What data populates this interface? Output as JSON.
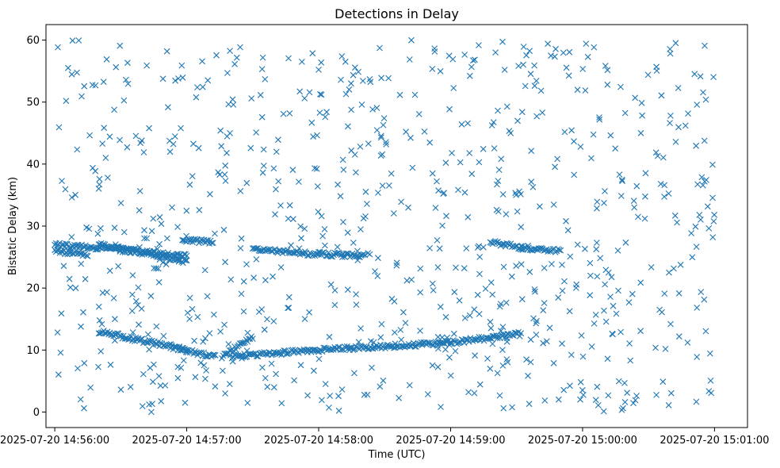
{
  "chart_data": {
    "type": "scatter",
    "title": "Detections in Delay",
    "xlabel": "Time (UTC)",
    "ylabel": "Bistatic Delay (km)",
    "marker": "x",
    "color": "#1f77b4",
    "grid": false,
    "legend": "none",
    "xlim": [
      "2025-07-20 14:55:56",
      "2025-07-20 15:01:15"
    ],
    "ylim": [
      -2.5,
      62.5
    ],
    "xticks": [
      "2025-07-20 14:56:00",
      "2025-07-20 14:57:00",
      "2025-07-20 14:58:00",
      "2025-07-20 14:59:00",
      "2025-07-20 15:00:00",
      "2025-07-20 15:01:00"
    ],
    "yticks": [
      0,
      10,
      20,
      30,
      40,
      50,
      60
    ],
    "tracks": [
      {
        "x_start": "2025-07-20 14:56:00",
        "x_end": "2025-07-20 14:57:00",
        "y_start": 27.0,
        "y_end": 25.3
      },
      {
        "x_start": "2025-07-20 14:56:00",
        "x_end": "2025-07-20 14:56:15",
        "y_start": 26.0,
        "y_end": 25.4
      },
      {
        "x_start": "2025-07-20 14:56:20",
        "x_end": "2025-07-20 14:57:00",
        "y_start": 27.0,
        "y_end": 24.3
      },
      {
        "x_start": "2025-07-20 14:56:20",
        "x_end": "2025-07-20 14:57:00",
        "y_start": 13.0,
        "y_end": 10.0
      },
      {
        "x_start": "2025-07-20 14:56:58",
        "x_end": "2025-07-20 14:57:12",
        "y_start": 27.8,
        "y_end": 27.4
      },
      {
        "x_start": "2025-07-20 14:56:58",
        "x_end": "2025-07-20 14:57:13",
        "y_start": 10.0,
        "y_end": 8.9
      },
      {
        "x_start": "2025-07-20 14:57:16",
        "x_end": "2025-07-20 14:57:30",
        "y_start": 9.0,
        "y_end": 12.0
      },
      {
        "x_start": "2025-07-20 14:57:30",
        "x_end": "2025-07-20 14:58:00",
        "y_start": 26.4,
        "y_end": 25.4
      },
      {
        "x_start": "2025-07-20 14:57:20",
        "x_end": "2025-07-20 14:58:00",
        "y_start": 9.0,
        "y_end": 10.0
      },
      {
        "x_start": "2025-07-20 14:58:00",
        "x_end": "2025-07-20 14:58:21",
        "y_start": 25.5,
        "y_end": 25.2
      },
      {
        "x_start": "2025-07-20 14:58:00",
        "x_end": "2025-07-20 14:59:00",
        "y_start": 10.0,
        "y_end": 11.2
      },
      {
        "x_start": "2025-07-20 14:59:00",
        "x_end": "2025-07-20 14:59:32",
        "y_start": 11.2,
        "y_end": 12.6
      },
      {
        "x_start": "2025-07-20 14:59:18",
        "x_end": "2025-07-20 14:59:32",
        "y_start": 27.5,
        "y_end": 26.5
      },
      {
        "x_start": "2025-07-20 14:59:32",
        "x_end": "2025-07-20 14:59:50",
        "y_start": 26.5,
        "y_end": 26.0
      }
    ],
    "noise_count": 800,
    "noise_y_range": [
      0,
      60
    ]
  }
}
